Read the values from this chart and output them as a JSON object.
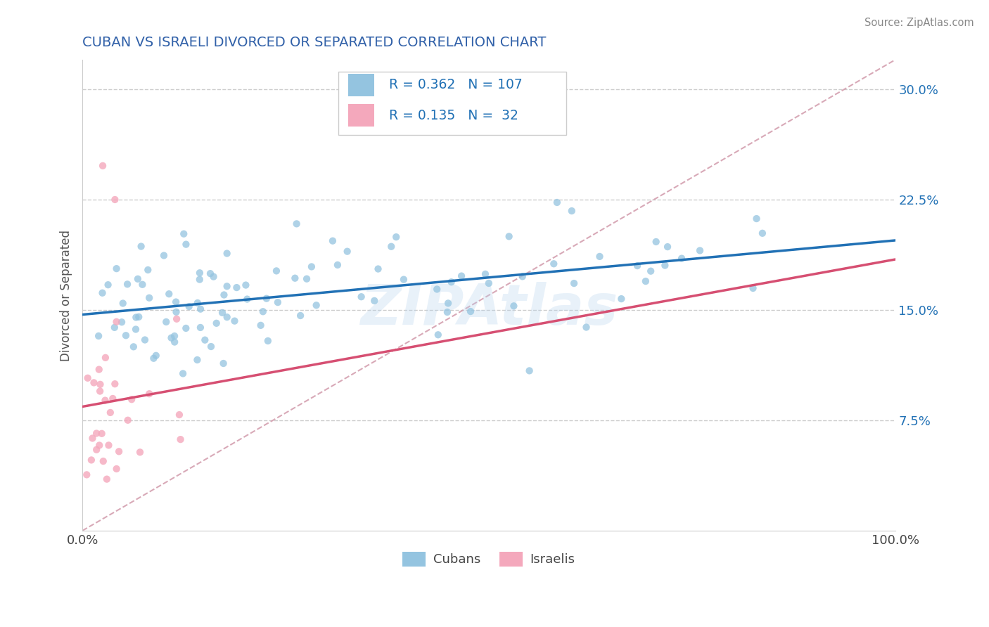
{
  "title": "CUBAN VS ISRAELI DIVORCED OR SEPARATED CORRELATION CHART",
  "source": "Source: ZipAtlas.com",
  "ylabel": "Divorced or Separated",
  "legend_cuban": "Cubans",
  "legend_israeli": "Israelis",
  "R_cuban": 0.362,
  "N_cuban": 107,
  "R_israeli": 0.135,
  "N_israeli": 32,
  "cuban_color": "#94c4e0",
  "israeli_color": "#f4a8bc",
  "cuban_line_color": "#2171b5",
  "israeli_line_color": "#d64f72",
  "diagonal_color": "#d4a0b0",
  "watermark": "ZIPAtlas",
  "title_color": "#3060a8",
  "xlim": [
    0.0,
    1.0
  ],
  "ylim": [
    0.0,
    0.32
  ],
  "ytick_vals": [
    0.075,
    0.15,
    0.225,
    0.3
  ],
  "ytick_labels": [
    "7.5%",
    "15.0%",
    "22.5%",
    "30.0%"
  ],
  "cuban_seed": 42,
  "israeli_seed": 77
}
